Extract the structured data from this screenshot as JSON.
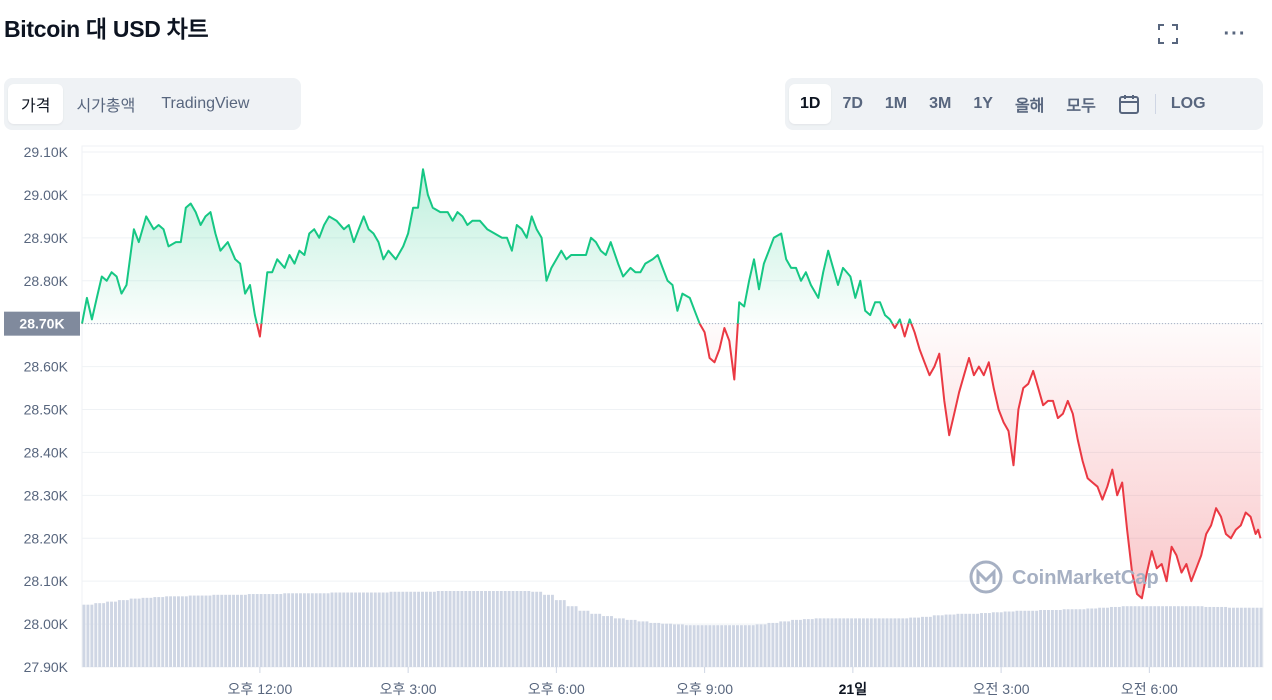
{
  "header": {
    "title": "Bitcoin 대 USD 차트",
    "fullscreen_icon": "fullscreen-icon",
    "more_label": "···"
  },
  "type_tabs": [
    {
      "label": "가격",
      "active": true
    },
    {
      "label": "시가총액",
      "active": false
    },
    {
      "label": "TradingView",
      "active": false
    }
  ],
  "range_tabs": [
    {
      "label": "1D",
      "active": true
    },
    {
      "label": "7D",
      "active": false
    },
    {
      "label": "1M",
      "active": false
    },
    {
      "label": "3M",
      "active": false
    },
    {
      "label": "1Y",
      "active": false
    },
    {
      "label": "올해",
      "active": false
    },
    {
      "label": "모두",
      "active": false
    }
  ],
  "calendar_icon": "calendar-icon",
  "log_label": "LOG",
  "watermark": "CoinMarketCap",
  "colors": {
    "up": "#16c784",
    "down": "#ea3943",
    "grid": "#eff2f5",
    "volume": "#cfd6e4",
    "reference_badge": "#808a9d"
  },
  "chart_data": {
    "type": "area",
    "y_axis": {
      "min": 27.9,
      "max": 29.1,
      "ticks": [
        "29.10K",
        "29.00K",
        "28.90K",
        "28.80K",
        "28.70K",
        "28.60K",
        "28.50K",
        "28.40K",
        "28.30K",
        "28.20K",
        "28.10K",
        "28.00K",
        "27.90K"
      ],
      "unit": "K USD"
    },
    "x_ticks": [
      {
        "label": "오후 12:00",
        "t": 12.0,
        "bold": false
      },
      {
        "label": "오후 3:00",
        "t": 15.0,
        "bold": false
      },
      {
        "label": "오후 6:00",
        "t": 18.0,
        "bold": false
      },
      {
        "label": "오후 9:00",
        "t": 21.0,
        "bold": false
      },
      {
        "label": "21일",
        "t": 24.0,
        "bold": true
      },
      {
        "label": "오전 3:00",
        "t": 27.0,
        "bold": false
      },
      {
        "label": "오전 6:00",
        "t": 30.0,
        "bold": false
      }
    ],
    "x_range": [
      8.4,
      32.3
    ],
    "reference_price": 28.7,
    "reference_label": "28.70K",
    "series": [
      {
        "points": [
          [
            8.4,
            28.7
          ],
          [
            8.5,
            28.76
          ],
          [
            8.6,
            28.71
          ],
          [
            8.7,
            28.76
          ],
          [
            8.8,
            28.81
          ],
          [
            8.9,
            28.8
          ],
          [
            9.0,
            28.82
          ],
          [
            9.1,
            28.81
          ],
          [
            9.2,
            28.77
          ],
          [
            9.3,
            28.79
          ],
          [
            9.45,
            28.92
          ],
          [
            9.55,
            28.89
          ],
          [
            9.7,
            28.95
          ],
          [
            9.85,
            28.92
          ],
          [
            9.95,
            28.93
          ],
          [
            10.05,
            28.92
          ],
          [
            10.15,
            28.88
          ],
          [
            10.3,
            28.89
          ],
          [
            10.4,
            28.89
          ],
          [
            10.5,
            28.97
          ],
          [
            10.6,
            28.98
          ],
          [
            10.7,
            28.96
          ],
          [
            10.8,
            28.93
          ],
          [
            10.9,
            28.95
          ],
          [
            11.0,
            28.96
          ],
          [
            11.1,
            28.91
          ],
          [
            11.2,
            28.87
          ],
          [
            11.35,
            28.89
          ],
          [
            11.5,
            28.85
          ],
          [
            11.6,
            28.84
          ],
          [
            11.7,
            28.77
          ],
          [
            11.8,
            28.79
          ],
          [
            11.9,
            28.72
          ],
          [
            12.0,
            28.67
          ],
          [
            12.15,
            28.82
          ],
          [
            12.25,
            28.82
          ],
          [
            12.35,
            28.85
          ],
          [
            12.5,
            28.83
          ],
          [
            12.6,
            28.86
          ],
          [
            12.7,
            28.84
          ],
          [
            12.8,
            28.87
          ],
          [
            12.9,
            28.86
          ],
          [
            13.0,
            28.91
          ],
          [
            13.1,
            28.92
          ],
          [
            13.2,
            28.9
          ],
          [
            13.3,
            28.93
          ],
          [
            13.4,
            28.95
          ],
          [
            13.55,
            28.94
          ],
          [
            13.7,
            28.92
          ],
          [
            13.8,
            28.93
          ],
          [
            13.9,
            28.89
          ],
          [
            14.0,
            28.92
          ],
          [
            14.1,
            28.95
          ],
          [
            14.2,
            28.92
          ],
          [
            14.3,
            28.91
          ],
          [
            14.4,
            28.89
          ],
          [
            14.5,
            28.85
          ],
          [
            14.6,
            28.87
          ],
          [
            14.75,
            28.85
          ],
          [
            14.9,
            28.88
          ],
          [
            15.0,
            28.91
          ],
          [
            15.1,
            28.97
          ],
          [
            15.2,
            28.97
          ],
          [
            15.3,
            29.06
          ],
          [
            15.4,
            29.0
          ],
          [
            15.5,
            28.97
          ],
          [
            15.65,
            28.96
          ],
          [
            15.8,
            28.96
          ],
          [
            15.9,
            28.94
          ],
          [
            16.0,
            28.96
          ],
          [
            16.1,
            28.95
          ],
          [
            16.2,
            28.93
          ],
          [
            16.3,
            28.94
          ],
          [
            16.45,
            28.94
          ],
          [
            16.6,
            28.92
          ],
          [
            16.75,
            28.91
          ],
          [
            16.9,
            28.9
          ],
          [
            17.0,
            28.9
          ],
          [
            17.1,
            28.87
          ],
          [
            17.2,
            28.93
          ],
          [
            17.3,
            28.92
          ],
          [
            17.4,
            28.9
          ],
          [
            17.5,
            28.95
          ],
          [
            17.6,
            28.92
          ],
          [
            17.7,
            28.9
          ],
          [
            17.8,
            28.8
          ],
          [
            17.9,
            28.83
          ],
          [
            18.0,
            28.85
          ],
          [
            18.1,
            28.87
          ],
          [
            18.2,
            28.85
          ],
          [
            18.3,
            28.86
          ],
          [
            18.5,
            28.86
          ],
          [
            18.6,
            28.86
          ],
          [
            18.7,
            28.9
          ],
          [
            18.8,
            28.89
          ],
          [
            18.9,
            28.87
          ],
          [
            19.0,
            28.86
          ],
          [
            19.1,
            28.89
          ],
          [
            19.25,
            28.84
          ],
          [
            19.35,
            28.81
          ],
          [
            19.5,
            28.83
          ],
          [
            19.6,
            28.82
          ],
          [
            19.7,
            28.82
          ],
          [
            19.8,
            28.84
          ],
          [
            19.95,
            28.85
          ],
          [
            20.05,
            28.86
          ],
          [
            20.15,
            28.83
          ],
          [
            20.25,
            28.8
          ],
          [
            20.35,
            28.79
          ],
          [
            20.45,
            28.73
          ],
          [
            20.55,
            28.77
          ],
          [
            20.7,
            28.76
          ],
          [
            20.8,
            28.73
          ],
          [
            20.9,
            28.7
          ],
          [
            21.0,
            28.68
          ],
          [
            21.1,
            28.62
          ],
          [
            21.2,
            28.61
          ],
          [
            21.3,
            28.64
          ],
          [
            21.4,
            28.69
          ],
          [
            21.5,
            28.66
          ],
          [
            21.6,
            28.57
          ],
          [
            21.7,
            28.75
          ],
          [
            21.8,
            28.74
          ],
          [
            21.9,
            28.8
          ],
          [
            22.0,
            28.85
          ],
          [
            22.1,
            28.78
          ],
          [
            22.2,
            28.84
          ],
          [
            22.3,
            28.87
          ],
          [
            22.4,
            28.9
          ],
          [
            22.55,
            28.91
          ],
          [
            22.65,
            28.85
          ],
          [
            22.75,
            28.83
          ],
          [
            22.85,
            28.83
          ],
          [
            22.95,
            28.8
          ],
          [
            23.05,
            28.82
          ],
          [
            23.15,
            28.79
          ],
          [
            23.3,
            28.76
          ],
          [
            23.4,
            28.82
          ],
          [
            23.5,
            28.87
          ],
          [
            23.6,
            28.83
          ],
          [
            23.7,
            28.79
          ],
          [
            23.8,
            28.83
          ],
          [
            23.95,
            28.81
          ],
          [
            24.05,
            28.76
          ],
          [
            24.15,
            28.8
          ],
          [
            24.25,
            28.73
          ],
          [
            24.35,
            28.72
          ],
          [
            24.45,
            28.75
          ],
          [
            24.55,
            28.75
          ],
          [
            24.65,
            28.72
          ],
          [
            24.75,
            28.71
          ],
          [
            24.85,
            28.69
          ],
          [
            24.95,
            28.71
          ],
          [
            25.05,
            28.67
          ],
          [
            25.15,
            28.71
          ],
          [
            25.25,
            28.68
          ],
          [
            25.35,
            28.64
          ],
          [
            25.45,
            28.61
          ],
          [
            25.55,
            28.58
          ],
          [
            25.65,
            28.6
          ],
          [
            25.75,
            28.63
          ],
          [
            25.85,
            28.52
          ],
          [
            25.95,
            28.44
          ],
          [
            26.05,
            28.49
          ],
          [
            26.15,
            28.54
          ],
          [
            26.25,
            28.58
          ],
          [
            26.35,
            28.62
          ],
          [
            26.45,
            28.58
          ],
          [
            26.55,
            28.6
          ],
          [
            26.65,
            28.58
          ],
          [
            26.75,
            28.61
          ],
          [
            26.85,
            28.55
          ],
          [
            26.95,
            28.5
          ],
          [
            27.05,
            28.47
          ],
          [
            27.15,
            28.45
          ],
          [
            27.25,
            28.37
          ],
          [
            27.35,
            28.5
          ],
          [
            27.45,
            28.55
          ],
          [
            27.55,
            28.56
          ],
          [
            27.65,
            28.59
          ],
          [
            27.75,
            28.55
          ],
          [
            27.85,
            28.51
          ],
          [
            27.95,
            28.52
          ],
          [
            28.05,
            28.52
          ],
          [
            28.15,
            28.48
          ],
          [
            28.25,
            28.49
          ],
          [
            28.35,
            28.52
          ],
          [
            28.45,
            28.49
          ],
          [
            28.55,
            28.43
          ],
          [
            28.65,
            28.38
          ],
          [
            28.75,
            28.34
          ],
          [
            28.85,
            28.33
          ],
          [
            28.95,
            28.32
          ],
          [
            29.05,
            28.29
          ],
          [
            29.15,
            28.32
          ],
          [
            29.25,
            28.36
          ],
          [
            29.35,
            28.3
          ],
          [
            29.45,
            28.33
          ],
          [
            29.55,
            28.22
          ],
          [
            29.65,
            28.12
          ],
          [
            29.75,
            28.07
          ],
          [
            29.85,
            28.06
          ],
          [
            29.95,
            28.12
          ],
          [
            30.05,
            28.17
          ],
          [
            30.15,
            28.13
          ],
          [
            30.25,
            28.14
          ],
          [
            30.35,
            28.1
          ],
          [
            30.45,
            28.18
          ],
          [
            30.55,
            28.16
          ],
          [
            30.65,
            28.12
          ],
          [
            30.75,
            28.14
          ],
          [
            30.85,
            28.1
          ],
          [
            30.95,
            28.13
          ],
          [
            31.05,
            28.16
          ],
          [
            31.15,
            28.21
          ],
          [
            31.25,
            28.23
          ],
          [
            31.35,
            28.27
          ],
          [
            31.45,
            28.25
          ],
          [
            31.55,
            28.21
          ],
          [
            31.65,
            28.2
          ],
          [
            31.75,
            28.22
          ],
          [
            31.85,
            28.23
          ],
          [
            31.95,
            28.26
          ],
          [
            32.05,
            28.25
          ],
          [
            32.15,
            28.21
          ],
          [
            32.2,
            28.22
          ],
          [
            32.25,
            28.2
          ]
        ]
      }
    ],
    "volume": {
      "min_fraction": 0.4,
      "levels": [
        0.82,
        0.84,
        0.86,
        0.88,
        0.9,
        0.91,
        0.92,
        0.93,
        0.93,
        0.94,
        0.94,
        0.95,
        0.95,
        0.95,
        0.96,
        0.96,
        0.96,
        0.97,
        0.97,
        0.97,
        0.97,
        0.98,
        0.98,
        0.98,
        0.98,
        0.98,
        0.99,
        0.99,
        0.99,
        0.99,
        1.0,
        1.0,
        1.0,
        1.0,
        1.0,
        1.0,
        1.0,
        1.0,
        0.99,
        0.95,
        0.88,
        0.8,
        0.74,
        0.7,
        0.67,
        0.64,
        0.62,
        0.6,
        0.58,
        0.57,
        0.56,
        0.55,
        0.55,
        0.55,
        0.55,
        0.55,
        0.55,
        0.56,
        0.58,
        0.6,
        0.62,
        0.63,
        0.64,
        0.64,
        0.64,
        0.64,
        0.64,
        0.64,
        0.64,
        0.64,
        0.65,
        0.66,
        0.68,
        0.69,
        0.7,
        0.7,
        0.71,
        0.72,
        0.73,
        0.74,
        0.74,
        0.75,
        0.75,
        0.76,
        0.76,
        0.77,
        0.78,
        0.79,
        0.8,
        0.8,
        0.8,
        0.8,
        0.8,
        0.8,
        0.8,
        0.79,
        0.79,
        0.78,
        0.78,
        0.78
      ]
    }
  }
}
